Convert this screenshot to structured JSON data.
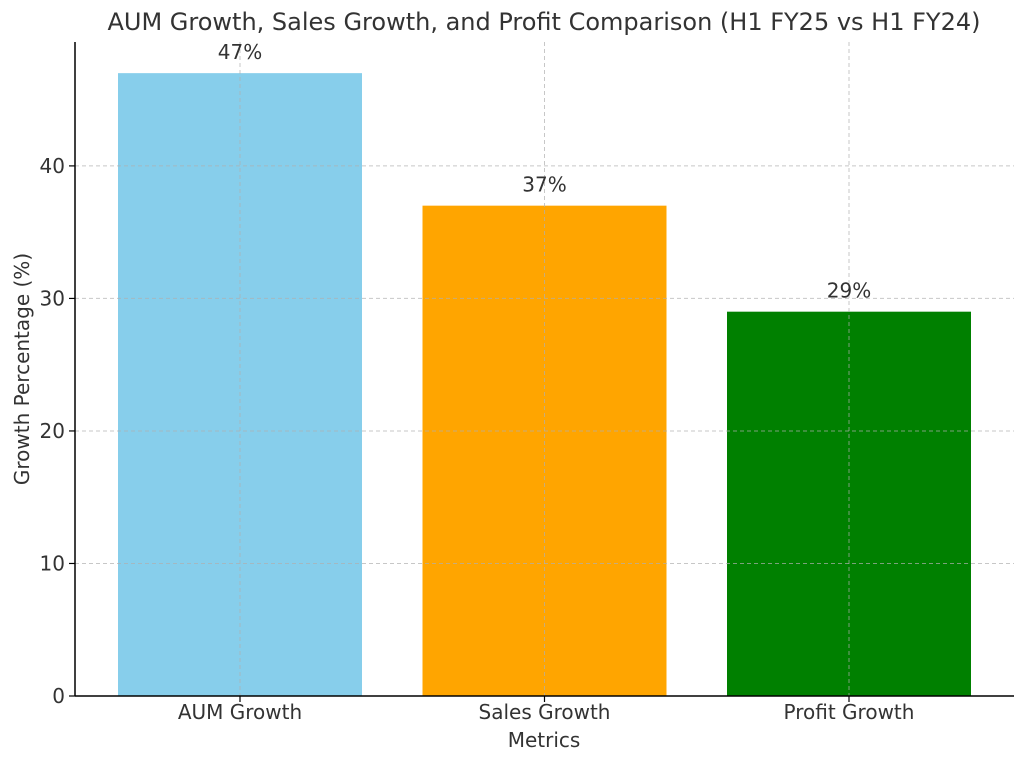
{
  "chart_data": {
    "type": "bar",
    "title": "AUM Growth, Sales Growth, and Profit Comparison (H1 FY25 vs H1 FY24)",
    "xlabel": "Metrics",
    "ylabel": "Growth Percentage (%)",
    "categories": [
      "AUM Growth",
      "Sales Growth",
      "Profit Growth"
    ],
    "values": [
      47,
      37,
      29
    ],
    "value_labels": [
      "47%",
      "37%",
      "29%"
    ],
    "colors": [
      "#87ceeb",
      "#ffa500",
      "#008000"
    ],
    "yticks": [
      0,
      10,
      20,
      30,
      40
    ],
    "ylim": [
      0,
      49.35
    ],
    "grid": true
  }
}
